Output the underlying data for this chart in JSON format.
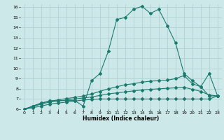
{
  "xlabel": "Humidex (Indice chaleur)",
  "xlim": [
    -0.5,
    23.5
  ],
  "ylim": [
    6,
    16.3
  ],
  "xticks": [
    0,
    1,
    2,
    3,
    4,
    5,
    6,
    7,
    8,
    9,
    10,
    11,
    12,
    13,
    14,
    15,
    16,
    17,
    18,
    19,
    20,
    21,
    22,
    23
  ],
  "yticks": [
    6,
    7,
    8,
    9,
    10,
    11,
    12,
    13,
    14,
    15,
    16
  ],
  "line_color": "#1a7a6e",
  "bg_color": "#cce8e8",
  "grid_color": "#aacece",
  "line1_x": [
    0,
    1,
    2,
    3,
    4,
    5,
    6,
    7,
    8,
    9,
    10,
    11,
    12,
    13,
    14,
    15,
    16,
    17,
    18,
    19,
    20,
    21,
    22,
    23
  ],
  "line1_y": [
    6.0,
    6.3,
    6.6,
    6.8,
    6.85,
    6.85,
    6.85,
    6.3,
    8.8,
    9.5,
    11.7,
    14.8,
    15.0,
    15.8,
    16.1,
    15.4,
    15.8,
    14.2,
    12.5,
    9.5,
    8.8,
    8.2,
    9.5,
    7.3
  ],
  "line2_x": [
    0,
    1,
    2,
    3,
    4,
    5,
    6,
    7,
    8,
    9,
    10,
    11,
    12,
    13,
    14,
    15,
    16,
    17,
    18,
    19,
    20,
    21,
    22,
    23
  ],
  "line2_y": [
    6.0,
    6.3,
    6.6,
    6.8,
    6.9,
    7.05,
    7.15,
    7.3,
    7.5,
    7.75,
    8.0,
    8.2,
    8.4,
    8.5,
    8.65,
    8.75,
    8.8,
    8.85,
    9.0,
    9.3,
    8.5,
    8.2,
    7.3,
    7.3
  ],
  "line3_x": [
    0,
    1,
    2,
    3,
    4,
    5,
    6,
    7,
    8,
    9,
    10,
    11,
    12,
    13,
    14,
    15,
    16,
    17,
    18,
    19,
    20,
    21,
    22,
    23
  ],
  "line3_y": [
    6.0,
    6.25,
    6.5,
    6.7,
    6.8,
    6.9,
    7.0,
    7.1,
    7.2,
    7.35,
    7.5,
    7.6,
    7.7,
    7.8,
    7.88,
    7.95,
    8.0,
    8.05,
    8.1,
    8.15,
    7.95,
    7.75,
    7.4,
    7.3
  ],
  "line4_x": [
    0,
    1,
    2,
    3,
    4,
    5,
    6,
    7,
    8,
    9,
    10,
    11,
    12,
    13,
    14,
    15,
    16,
    17,
    18,
    19,
    20,
    21,
    22,
    23
  ],
  "line4_y": [
    6.0,
    6.15,
    6.3,
    6.5,
    6.6,
    6.7,
    6.8,
    6.9,
    6.95,
    7.0,
    7.0,
    7.0,
    7.0,
    7.0,
    7.0,
    7.0,
    7.0,
    7.0,
    7.0,
    7.0,
    7.0,
    7.0,
    7.0,
    7.3
  ]
}
